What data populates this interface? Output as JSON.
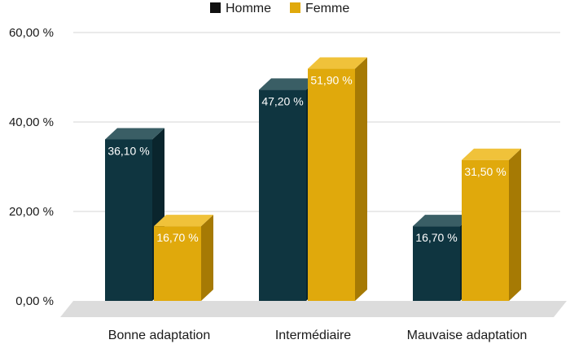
{
  "chart_data": {
    "type": "bar",
    "categories": [
      "Bonne adaptation",
      "Intermédiaire",
      "Mauvaise adaptation"
    ],
    "series": [
      {
        "name": "Homme",
        "values": [
          36.1,
          47.2,
          16.7
        ],
        "labels": [
          "36,10 %",
          "47,20 %",
          "16,70 %"
        ]
      },
      {
        "name": "Femme",
        "values": [
          16.7,
          51.9,
          31.5
        ],
        "labels": [
          "16,70 %",
          "51,90 %",
          "31,50 %"
        ]
      }
    ],
    "ylim": [
      0,
      60
    ],
    "yticks": [
      0,
      20,
      40,
      60
    ],
    "ytick_labels": [
      "0,00 %",
      "20,00 %",
      "40,00 %",
      "60,00 %"
    ],
    "grid": true,
    "legend": "top-center",
    "style": "3d",
    "colors": {
      "Homme": {
        "front": "#0f3540",
        "top": "#3a5e65",
        "side": "#0a252d"
      },
      "Femme": {
        "front": "#e0a90c",
        "top": "#f0c23a",
        "side": "#a67a04"
      },
      "grid": "#d4d4d4",
      "floor": "#dcdcdc"
    }
  }
}
